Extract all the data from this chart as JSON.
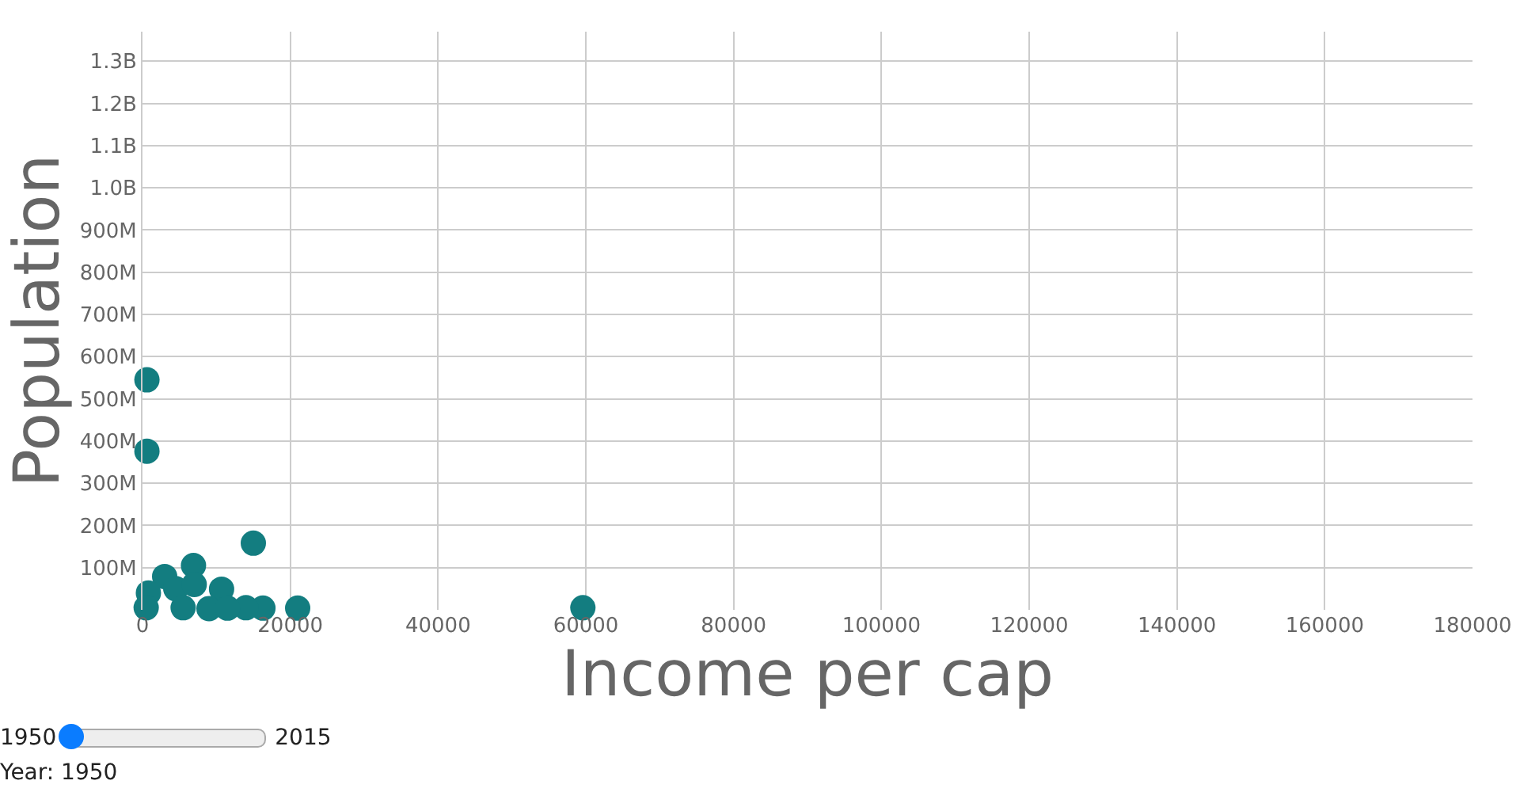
{
  "chart_data": {
    "type": "scatter",
    "xlabel": "Income per cap",
    "ylabel": "Population",
    "x": [
      600,
      600,
      15000,
      6900,
      10700,
      3000,
      59600,
      21000,
      16300,
      800,
      14000,
      4500,
      5500,
      7000,
      9000,
      500,
      11500
    ],
    "values": [
      545000000,
      376000000,
      158000000,
      105000000,
      49000000,
      79000000,
      5000000,
      4000000,
      4000000,
      40000000,
      5000000,
      50000000,
      5000000,
      60000000,
      3000000,
      5000000,
      4000000
    ],
    "color": "#137d80",
    "marker": "circle",
    "grid": true,
    "xlim": [
      0,
      180000
    ],
    "xticks": [
      0,
      20000,
      40000,
      60000,
      80000,
      100000,
      120000,
      140000,
      160000,
      180000
    ],
    "ylim": [
      0,
      1370000000
    ],
    "yticks": [
      {
        "value": 100000000,
        "label": "100M"
      },
      {
        "value": 200000000,
        "label": "200M"
      },
      {
        "value": 300000000,
        "label": "300M"
      },
      {
        "value": 400000000,
        "label": "400M"
      },
      {
        "value": 500000000,
        "label": "500M"
      },
      {
        "value": 600000000,
        "label": "600M"
      },
      {
        "value": 700000000,
        "label": "700M"
      },
      {
        "value": 800000000,
        "label": "800M"
      },
      {
        "value": 900000000,
        "label": "900M"
      },
      {
        "value": 1000000000,
        "label": "1.0B"
      },
      {
        "value": 1100000000,
        "label": "1.1B"
      },
      {
        "value": 1200000000,
        "label": "1.2B"
      },
      {
        "value": 1300000000,
        "label": "1.3B"
      }
    ],
    "annotations": [
      "1950",
      "2015",
      "Year: 1950"
    ]
  }
}
